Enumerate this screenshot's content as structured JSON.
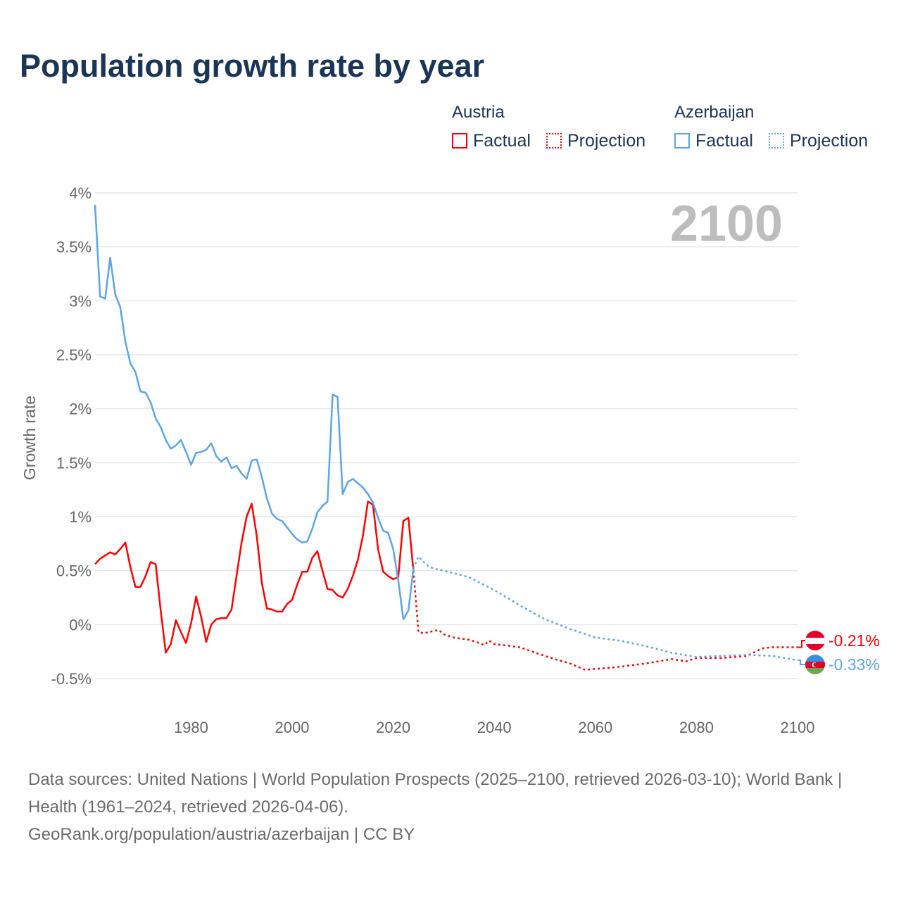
{
  "title": "Population growth rate by year",
  "legend": {
    "groups": [
      {
        "name": "Austria",
        "factual": "Factual",
        "projection": "Projection",
        "color": "#ff0000"
      },
      {
        "name": "Azerbaijan",
        "factual": "Factual",
        "projection": "Projection",
        "color": "#5aa5ea"
      }
    ]
  },
  "year_overlay": "2100",
  "end_labels": {
    "austria": "-0.21%",
    "azerbaijan": "-0.33%"
  },
  "footer": {
    "sources": "Data sources: United Nations | World Population Prospects (2025–2100, retrieved 2026-03-10); World Bank | Health (1961–2024, retrieved 2026-04-06).",
    "credit": "GeoRank.org/population/austria/azerbaijan | CC BY"
  },
  "chart_data": {
    "type": "line",
    "title": "Population growth rate by year",
    "xlabel": "",
    "ylabel": "Growth rate",
    "xlim": [
      1961,
      2100
    ],
    "ylim": [
      -0.5,
      4
    ],
    "x_ticks": [
      1980,
      2000,
      2020,
      2040,
      2060,
      2080,
      2100
    ],
    "x_tick_labels": [
      "1980",
      "2000",
      "2020",
      "2040",
      "2060",
      "2080",
      "2100"
    ],
    "y_ticks": [
      -0.5,
      0,
      0.5,
      1,
      1.5,
      2,
      2.5,
      3,
      3.5,
      4
    ],
    "y_tick_labels": [
      "-0.5%",
      "0%",
      "0.5%",
      "1%",
      "1.5%",
      "2%",
      "2.5%",
      "3%",
      "3.5%",
      "4%"
    ],
    "grid": true,
    "legend_position": "top-right",
    "series": [
      {
        "name": "Austria Factual",
        "color": "#ff0000",
        "dashed": false,
        "x": [
          1961,
          1962,
          1963,
          1964,
          1965,
          1966,
          1967,
          1968,
          1969,
          1970,
          1971,
          1972,
          1973,
          1974,
          1975,
          1976,
          1977,
          1978,
          1979,
          1980,
          1981,
          1982,
          1983,
          1984,
          1985,
          1986,
          1987,
          1988,
          1989,
          1990,
          1991,
          1992,
          1993,
          1994,
          1995,
          1996,
          1997,
          1998,
          1999,
          2000,
          2001,
          2002,
          2003,
          2004,
          2005,
          2006,
          2007,
          2008,
          2009,
          2010,
          2011,
          2012,
          2013,
          2014,
          2015,
          2016,
          2017,
          2018,
          2019,
          2020,
          2021,
          2022,
          2023,
          2024
        ],
        "y": [
          0.56,
          0.61,
          0.64,
          0.67,
          0.65,
          0.7,
          0.76,
          0.53,
          0.35,
          0.35,
          0.45,
          0.58,
          0.56,
          0.13,
          -0.26,
          -0.18,
          0.04,
          -0.07,
          -0.17,
          0.01,
          0.26,
          0.07,
          -0.16,
          0.0,
          0.05,
          0.06,
          0.06,
          0.14,
          0.45,
          0.76,
          1.0,
          1.12,
          0.82,
          0.39,
          0.15,
          0.14,
          0.12,
          0.12,
          0.19,
          0.23,
          0.37,
          0.49,
          0.49,
          0.62,
          0.68,
          0.5,
          0.33,
          0.32,
          0.27,
          0.25,
          0.33,
          0.45,
          0.6,
          0.82,
          1.14,
          1.11,
          0.7,
          0.49,
          0.45,
          0.42,
          0.44,
          0.96,
          0.99,
          0.5
        ]
      },
      {
        "name": "Austria Projection",
        "color": "#ff0000",
        "dashed": true,
        "x": [
          2024,
          2025,
          2026,
          2028,
          2029,
          2030,
          2032,
          2035,
          2037,
          2038,
          2039,
          2040,
          2045,
          2050,
          2052,
          2055,
          2058,
          2060,
          2063,
          2065,
          2070,
          2075,
          2078,
          2080,
          2085,
          2090,
          2093,
          2095,
          2099,
          2100
        ],
        "y": [
          0.5,
          -0.07,
          -0.08,
          -0.06,
          -0.05,
          -0.09,
          -0.12,
          -0.14,
          -0.17,
          -0.19,
          -0.15,
          -0.18,
          -0.21,
          -0.29,
          -0.32,
          -0.36,
          -0.42,
          -0.41,
          -0.4,
          -0.39,
          -0.36,
          -0.32,
          -0.34,
          -0.31,
          -0.31,
          -0.29,
          -0.22,
          -0.21,
          -0.21,
          -0.21
        ]
      },
      {
        "name": "Azerbaijan Factual",
        "color": "#5aa5ea",
        "dashed": false,
        "x": [
          1961,
          1962,
          1963,
          1964,
          1965,
          1966,
          1967,
          1968,
          1969,
          1970,
          1971,
          1972,
          1973,
          1974,
          1975,
          1976,
          1977,
          1978,
          1979,
          1980,
          1981,
          1982,
          1983,
          1984,
          1985,
          1986,
          1987,
          1988,
          1989,
          1990,
          1991,
          1992,
          1993,
          1994,
          1995,
          1996,
          1997,
          1998,
          1999,
          2000,
          2001,
          2002,
          2003,
          2004,
          2005,
          2006,
          2007,
          2008,
          2009,
          2010,
          2011,
          2012,
          2013,
          2014,
          2015,
          2016,
          2017,
          2018,
          2019,
          2020,
          2021,
          2022,
          2023,
          2024
        ],
        "y": [
          3.89,
          3.04,
          3.02,
          3.4,
          3.06,
          2.94,
          2.62,
          2.42,
          2.34,
          2.16,
          2.15,
          2.06,
          1.91,
          1.83,
          1.71,
          1.63,
          1.66,
          1.71,
          1.6,
          1.48,
          1.59,
          1.6,
          1.62,
          1.68,
          1.56,
          1.51,
          1.55,
          1.45,
          1.47,
          1.4,
          1.35,
          1.52,
          1.53,
          1.37,
          1.17,
          1.03,
          0.98,
          0.96,
          0.9,
          0.84,
          0.79,
          0.76,
          0.77,
          0.89,
          1.04,
          1.1,
          1.14,
          2.13,
          2.11,
          1.21,
          1.32,
          1.35,
          1.31,
          1.27,
          1.21,
          1.13,
          0.99,
          0.87,
          0.85,
          0.7,
          0.41,
          0.05,
          0.13,
          0.52
        ]
      },
      {
        "name": "Azerbaijan Projection",
        "color": "#5aa5ea",
        "dashed": true,
        "x": [
          2024,
          2025,
          2026,
          2027,
          2028,
          2030,
          2035,
          2040,
          2045,
          2050,
          2055,
          2060,
          2065,
          2070,
          2075,
          2080,
          2085,
          2090,
          2095,
          2100
        ],
        "y": [
          0.52,
          0.63,
          0.58,
          0.54,
          0.52,
          0.5,
          0.44,
          0.32,
          0.18,
          0.05,
          -0.04,
          -0.12,
          -0.15,
          -0.2,
          -0.26,
          -0.3,
          -0.29,
          -0.28,
          -0.29,
          -0.33
        ]
      }
    ]
  }
}
